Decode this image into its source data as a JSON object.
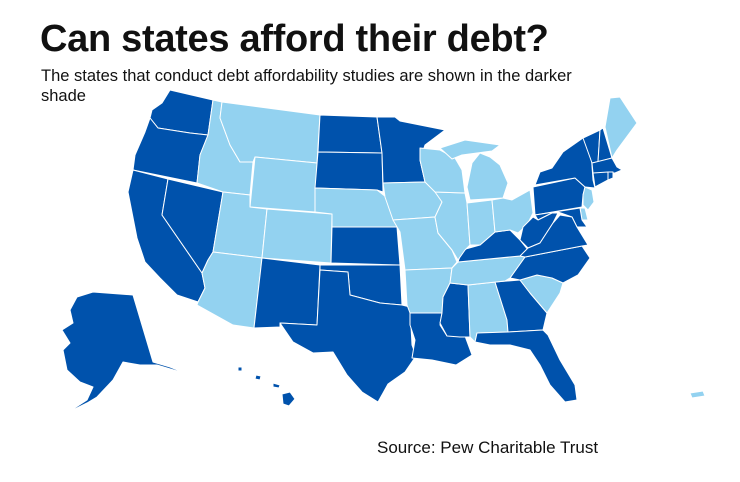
{
  "title": "Can states afford their debt?",
  "subtitle": "The states that conduct debt affordability studies are shown in the darker shade",
  "source": "Source: Pew Charitable Trust",
  "colors": {
    "conducts_study": "#0052ac",
    "no_study": "#93d2f0"
  },
  "states": [
    {
      "abbr": "WA",
      "conducts_study": true
    },
    {
      "abbr": "OR",
      "conducts_study": true
    },
    {
      "abbr": "CA",
      "conducts_study": true
    },
    {
      "abbr": "NV",
      "conducts_study": true
    },
    {
      "abbr": "ID",
      "conducts_study": false
    },
    {
      "abbr": "MT",
      "conducts_study": false
    },
    {
      "abbr": "WY",
      "conducts_study": false
    },
    {
      "abbr": "UT",
      "conducts_study": false
    },
    {
      "abbr": "CO",
      "conducts_study": false
    },
    {
      "abbr": "AZ",
      "conducts_study": false
    },
    {
      "abbr": "NM",
      "conducts_study": true
    },
    {
      "abbr": "ND",
      "conducts_study": true
    },
    {
      "abbr": "SD",
      "conducts_study": true
    },
    {
      "abbr": "NE",
      "conducts_study": false
    },
    {
      "abbr": "KS",
      "conducts_study": true
    },
    {
      "abbr": "OK",
      "conducts_study": true
    },
    {
      "abbr": "TX",
      "conducts_study": true
    },
    {
      "abbr": "MN",
      "conducts_study": true
    },
    {
      "abbr": "IA",
      "conducts_study": false
    },
    {
      "abbr": "MO",
      "conducts_study": false
    },
    {
      "abbr": "AR",
      "conducts_study": false
    },
    {
      "abbr": "LA",
      "conducts_study": true
    },
    {
      "abbr": "MS",
      "conducts_study": true
    },
    {
      "abbr": "AL",
      "conducts_study": false
    },
    {
      "abbr": "GA",
      "conducts_study": true
    },
    {
      "abbr": "FL",
      "conducts_study": true
    },
    {
      "abbr": "SC",
      "conducts_study": false
    },
    {
      "abbr": "NC",
      "conducts_study": true
    },
    {
      "abbr": "TN",
      "conducts_study": false
    },
    {
      "abbr": "KY",
      "conducts_study": true
    },
    {
      "abbr": "IL",
      "conducts_study": false
    },
    {
      "abbr": "IN",
      "conducts_study": false
    },
    {
      "abbr": "OH",
      "conducts_study": false
    },
    {
      "abbr": "WI",
      "conducts_study": false
    },
    {
      "abbr": "MI",
      "conducts_study": false
    },
    {
      "abbr": "PA",
      "conducts_study": true
    },
    {
      "abbr": "NY",
      "conducts_study": true
    },
    {
      "abbr": "VT",
      "conducts_study": true
    },
    {
      "abbr": "NH",
      "conducts_study": true
    },
    {
      "abbr": "ME",
      "conducts_study": false
    },
    {
      "abbr": "MA",
      "conducts_study": true
    },
    {
      "abbr": "CT",
      "conducts_study": true
    },
    {
      "abbr": "RI",
      "conducts_study": true
    },
    {
      "abbr": "NJ",
      "conducts_study": false
    },
    {
      "abbr": "DE",
      "conducts_study": false
    },
    {
      "abbr": "MD",
      "conducts_study": true
    },
    {
      "abbr": "WV",
      "conducts_study": true
    },
    {
      "abbr": "VA",
      "conducts_study": true
    },
    {
      "abbr": "AK",
      "conducts_study": true
    },
    {
      "abbr": "HI",
      "conducts_study": true
    },
    {
      "abbr": "PR",
      "conducts_study": false
    }
  ]
}
